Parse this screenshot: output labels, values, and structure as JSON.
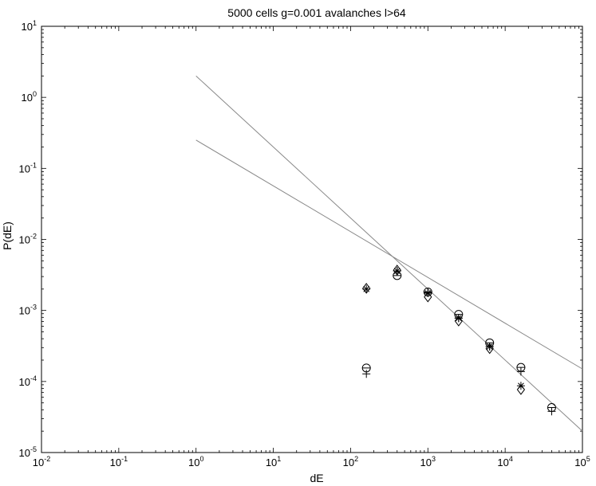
{
  "chart_data": {
    "type": "scatter",
    "title": "5000 cells g=0.001 avalanches l>64",
    "xlabel": "dE",
    "ylabel": "P(dE)",
    "xscale": "log",
    "yscale": "log",
    "xlim": [
      0.01,
      100000
    ],
    "ylim": [
      1e-05,
      10
    ],
    "x_ticks": [
      {
        "base": "10",
        "exp": "-2"
      },
      {
        "base": "10",
        "exp": "-1"
      },
      {
        "base": "10",
        "exp": "0"
      },
      {
        "base": "10",
        "exp": "1"
      },
      {
        "base": "10",
        "exp": "2"
      },
      {
        "base": "10",
        "exp": "3"
      },
      {
        "base": "10",
        "exp": "4"
      },
      {
        "base": "10",
        "exp": "5"
      }
    ],
    "y_ticks": [
      {
        "base": "10",
        "exp": "-5"
      },
      {
        "base": "10",
        "exp": "-4"
      },
      {
        "base": "10",
        "exp": "-3"
      },
      {
        "base": "10",
        "exp": "-2"
      },
      {
        "base": "10",
        "exp": "-1"
      },
      {
        "base": "10",
        "exp": "0"
      },
      {
        "base": "10",
        "exp": "1"
      }
    ],
    "grid": false,
    "colors": {
      "axes": "#000000",
      "fit_lines": "#888888",
      "markers": "#000000"
    },
    "series": [
      {
        "marker": "circle",
        "points": [
          [
            160,
            0.000155
          ],
          [
            400,
            0.0031
          ],
          [
            1000,
            0.00182
          ],
          [
            2500,
            0.00088
          ],
          [
            6300,
            0.00035
          ],
          [
            16000,
            0.000158
          ],
          [
            40000,
            4.3e-05
          ]
        ]
      },
      {
        "marker": "plus",
        "points": [
          [
            160,
            0.000128
          ],
          [
            400,
            0.0036
          ],
          [
            1000,
            0.0018
          ],
          [
            2500,
            0.00078
          ],
          [
            6300,
            0.00031
          ],
          [
            16000,
            0.000138
          ],
          [
            40000,
            3.8e-05
          ]
        ]
      },
      {
        "marker": "star",
        "points": [
          [
            160,
            0.002
          ],
          [
            400,
            0.0036
          ],
          [
            1000,
            0.00175
          ],
          [
            2500,
            0.00078
          ],
          [
            6300,
            0.00031
          ],
          [
            16000,
            8.7e-05
          ]
        ]
      },
      {
        "marker": "diamond",
        "points": [
          [
            160,
            0.00205
          ],
          [
            400,
            0.0037
          ],
          [
            1000,
            0.00155
          ],
          [
            2500,
            0.00071
          ],
          [
            6300,
            0.00029
          ],
          [
            16000,
            7.7e-05
          ]
        ]
      }
    ],
    "fit_lines": [
      {
        "points": [
          [
            1,
            2
          ],
          [
            100000,
            2e-05
          ]
        ]
      },
      {
        "points": [
          [
            1,
            0.25
          ],
          [
            100000,
            0.00015
          ]
        ]
      }
    ]
  }
}
